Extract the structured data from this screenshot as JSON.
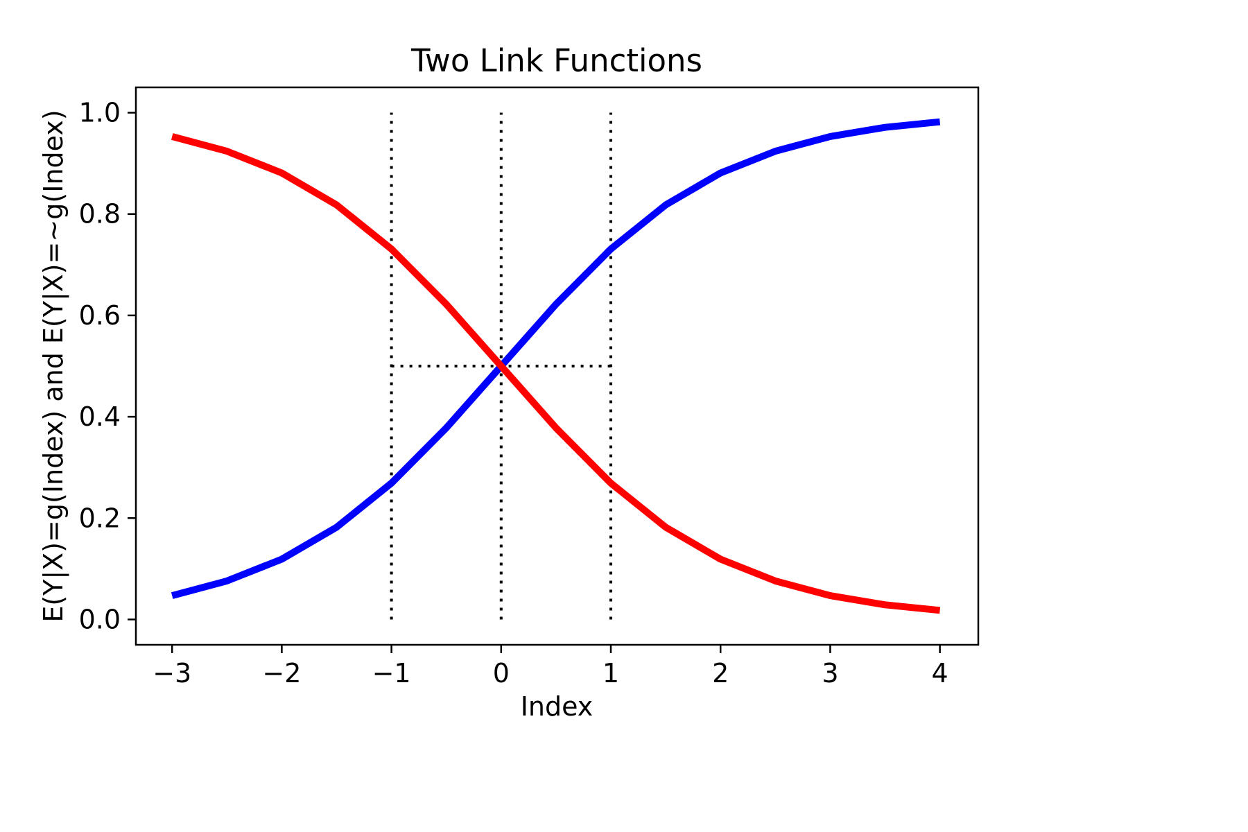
{
  "chart_data": {
    "type": "line",
    "title": "Two Link Functions",
    "xlabel": "Index",
    "ylabel": "E(Y|X)=g(Index) and E(Y|X)=~g(Index)",
    "xlim": [
      -3.33,
      4.35
    ],
    "ylim": [
      -0.05,
      1.05
    ],
    "xticks": [
      -3,
      -2,
      -1,
      0,
      1,
      2,
      3,
      4
    ],
    "xtick_labels": [
      "−3",
      "−2",
      "−1",
      "0",
      "1",
      "2",
      "3",
      "4"
    ],
    "yticks": [
      0.0,
      0.2,
      0.4,
      0.6,
      0.8,
      1.0
    ],
    "ytick_labels": [
      "0.0",
      "0.2",
      "0.4",
      "0.6",
      "0.8",
      "1.0"
    ],
    "grid": false,
    "legend": false,
    "series": [
      {
        "color": "#0000ff",
        "x": [
          -3,
          -2.5,
          -2,
          -1.5,
          -1,
          -0.5,
          0,
          0.5,
          1,
          1.5,
          2,
          2.5,
          3,
          3.5,
          4
        ],
        "y": [
          0.047,
          0.076,
          0.119,
          0.182,
          0.269,
          0.378,
          0.5,
          0.622,
          0.731,
          0.818,
          0.881,
          0.924,
          0.953,
          0.971,
          0.982
        ]
      },
      {
        "color": "#ff0000",
        "x": [
          -3,
          -2.5,
          -2,
          -1.5,
          -1,
          -0.5,
          0,
          0.5,
          1,
          1.5,
          2,
          2.5,
          3,
          3.5,
          4
        ],
        "y": [
          0.953,
          0.924,
          0.881,
          0.818,
          0.731,
          0.622,
          0.5,
          0.378,
          0.269,
          0.182,
          0.119,
          0.076,
          0.047,
          0.029,
          0.018
        ]
      }
    ],
    "reference_lines": [
      {
        "orientation": "vertical",
        "x": -1,
        "y_from": 0,
        "y_to": 1,
        "style": "dotted",
        "color": "#000000"
      },
      {
        "orientation": "vertical",
        "x": 0,
        "y_from": 0,
        "y_to": 1,
        "style": "dotted",
        "color": "#000000"
      },
      {
        "orientation": "vertical",
        "x": 1,
        "y_from": 0,
        "y_to": 1,
        "style": "dotted",
        "color": "#000000"
      },
      {
        "orientation": "horizontal",
        "y": 0.5,
        "x_from": -1,
        "x_to": 1,
        "style": "dotted",
        "color": "#000000"
      }
    ]
  }
}
